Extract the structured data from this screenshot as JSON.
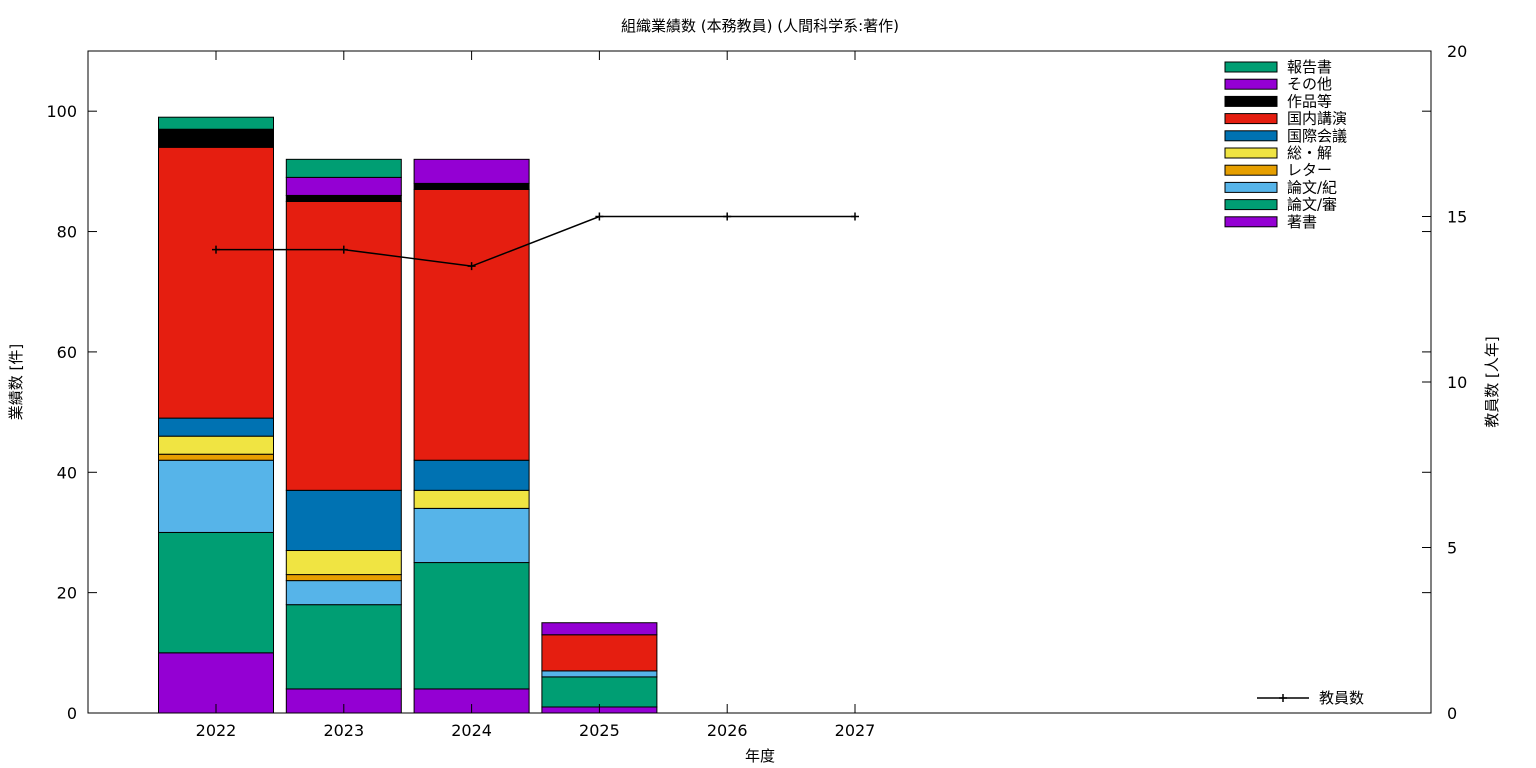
{
  "chart_data": {
    "type": "bar",
    "stacked": true,
    "title": "組織業績数 (本務教員) (人間科学系:著作)",
    "xlabel": "年度",
    "ylabel": "業績数 [件]",
    "y2label": "教員数 [人年]",
    "categories": [
      "2022",
      "2023",
      "2024",
      "2025",
      "2026",
      "2027"
    ],
    "ylim": [
      0,
      110
    ],
    "yticks": [
      0,
      20,
      40,
      60,
      80,
      100
    ],
    "y2lim": [
      0,
      20
    ],
    "y2ticks": [
      0,
      5,
      10,
      15,
      20
    ],
    "grid": false,
    "legend_position": "top-right",
    "series": [
      {
        "name": "著書",
        "color": "#9400d3",
        "values": [
          10,
          4,
          4,
          1,
          0,
          0
        ]
      },
      {
        "name": "論文/審",
        "color": "#009e73",
        "values": [
          20,
          14,
          21,
          5,
          0,
          0
        ]
      },
      {
        "name": "論文/紀",
        "color": "#56b4e9",
        "values": [
          12,
          4,
          9,
          1,
          0,
          0
        ]
      },
      {
        "name": "レター",
        "color": "#e69f00",
        "values": [
          1,
          1,
          0,
          0,
          0,
          0
        ]
      },
      {
        "name": "総・解",
        "color": "#f0e442",
        "values": [
          3,
          4,
          3,
          0,
          0,
          0
        ]
      },
      {
        "name": "国際会議",
        "color": "#0072b2",
        "values": [
          3,
          10,
          5,
          0,
          0,
          0
        ]
      },
      {
        "name": "国内講演",
        "color": "#e51e10",
        "values": [
          45,
          48,
          45,
          6,
          0,
          0
        ]
      },
      {
        "name": "作品等",
        "color": "#000000",
        "values": [
          3,
          1,
          1,
          0,
          0,
          0
        ]
      },
      {
        "name": "その他",
        "color": "#9400d3",
        "values": [
          0,
          3,
          4,
          2,
          0,
          0
        ]
      },
      {
        "name": "報告書",
        "color": "#009e73",
        "values": [
          2,
          3,
          0,
          0,
          0,
          0
        ]
      }
    ],
    "line_series": {
      "name": "教員数",
      "axis": "y2",
      "color": "#000000",
      "values": [
        14,
        14,
        13.5,
        15,
        15,
        15
      ]
    }
  }
}
